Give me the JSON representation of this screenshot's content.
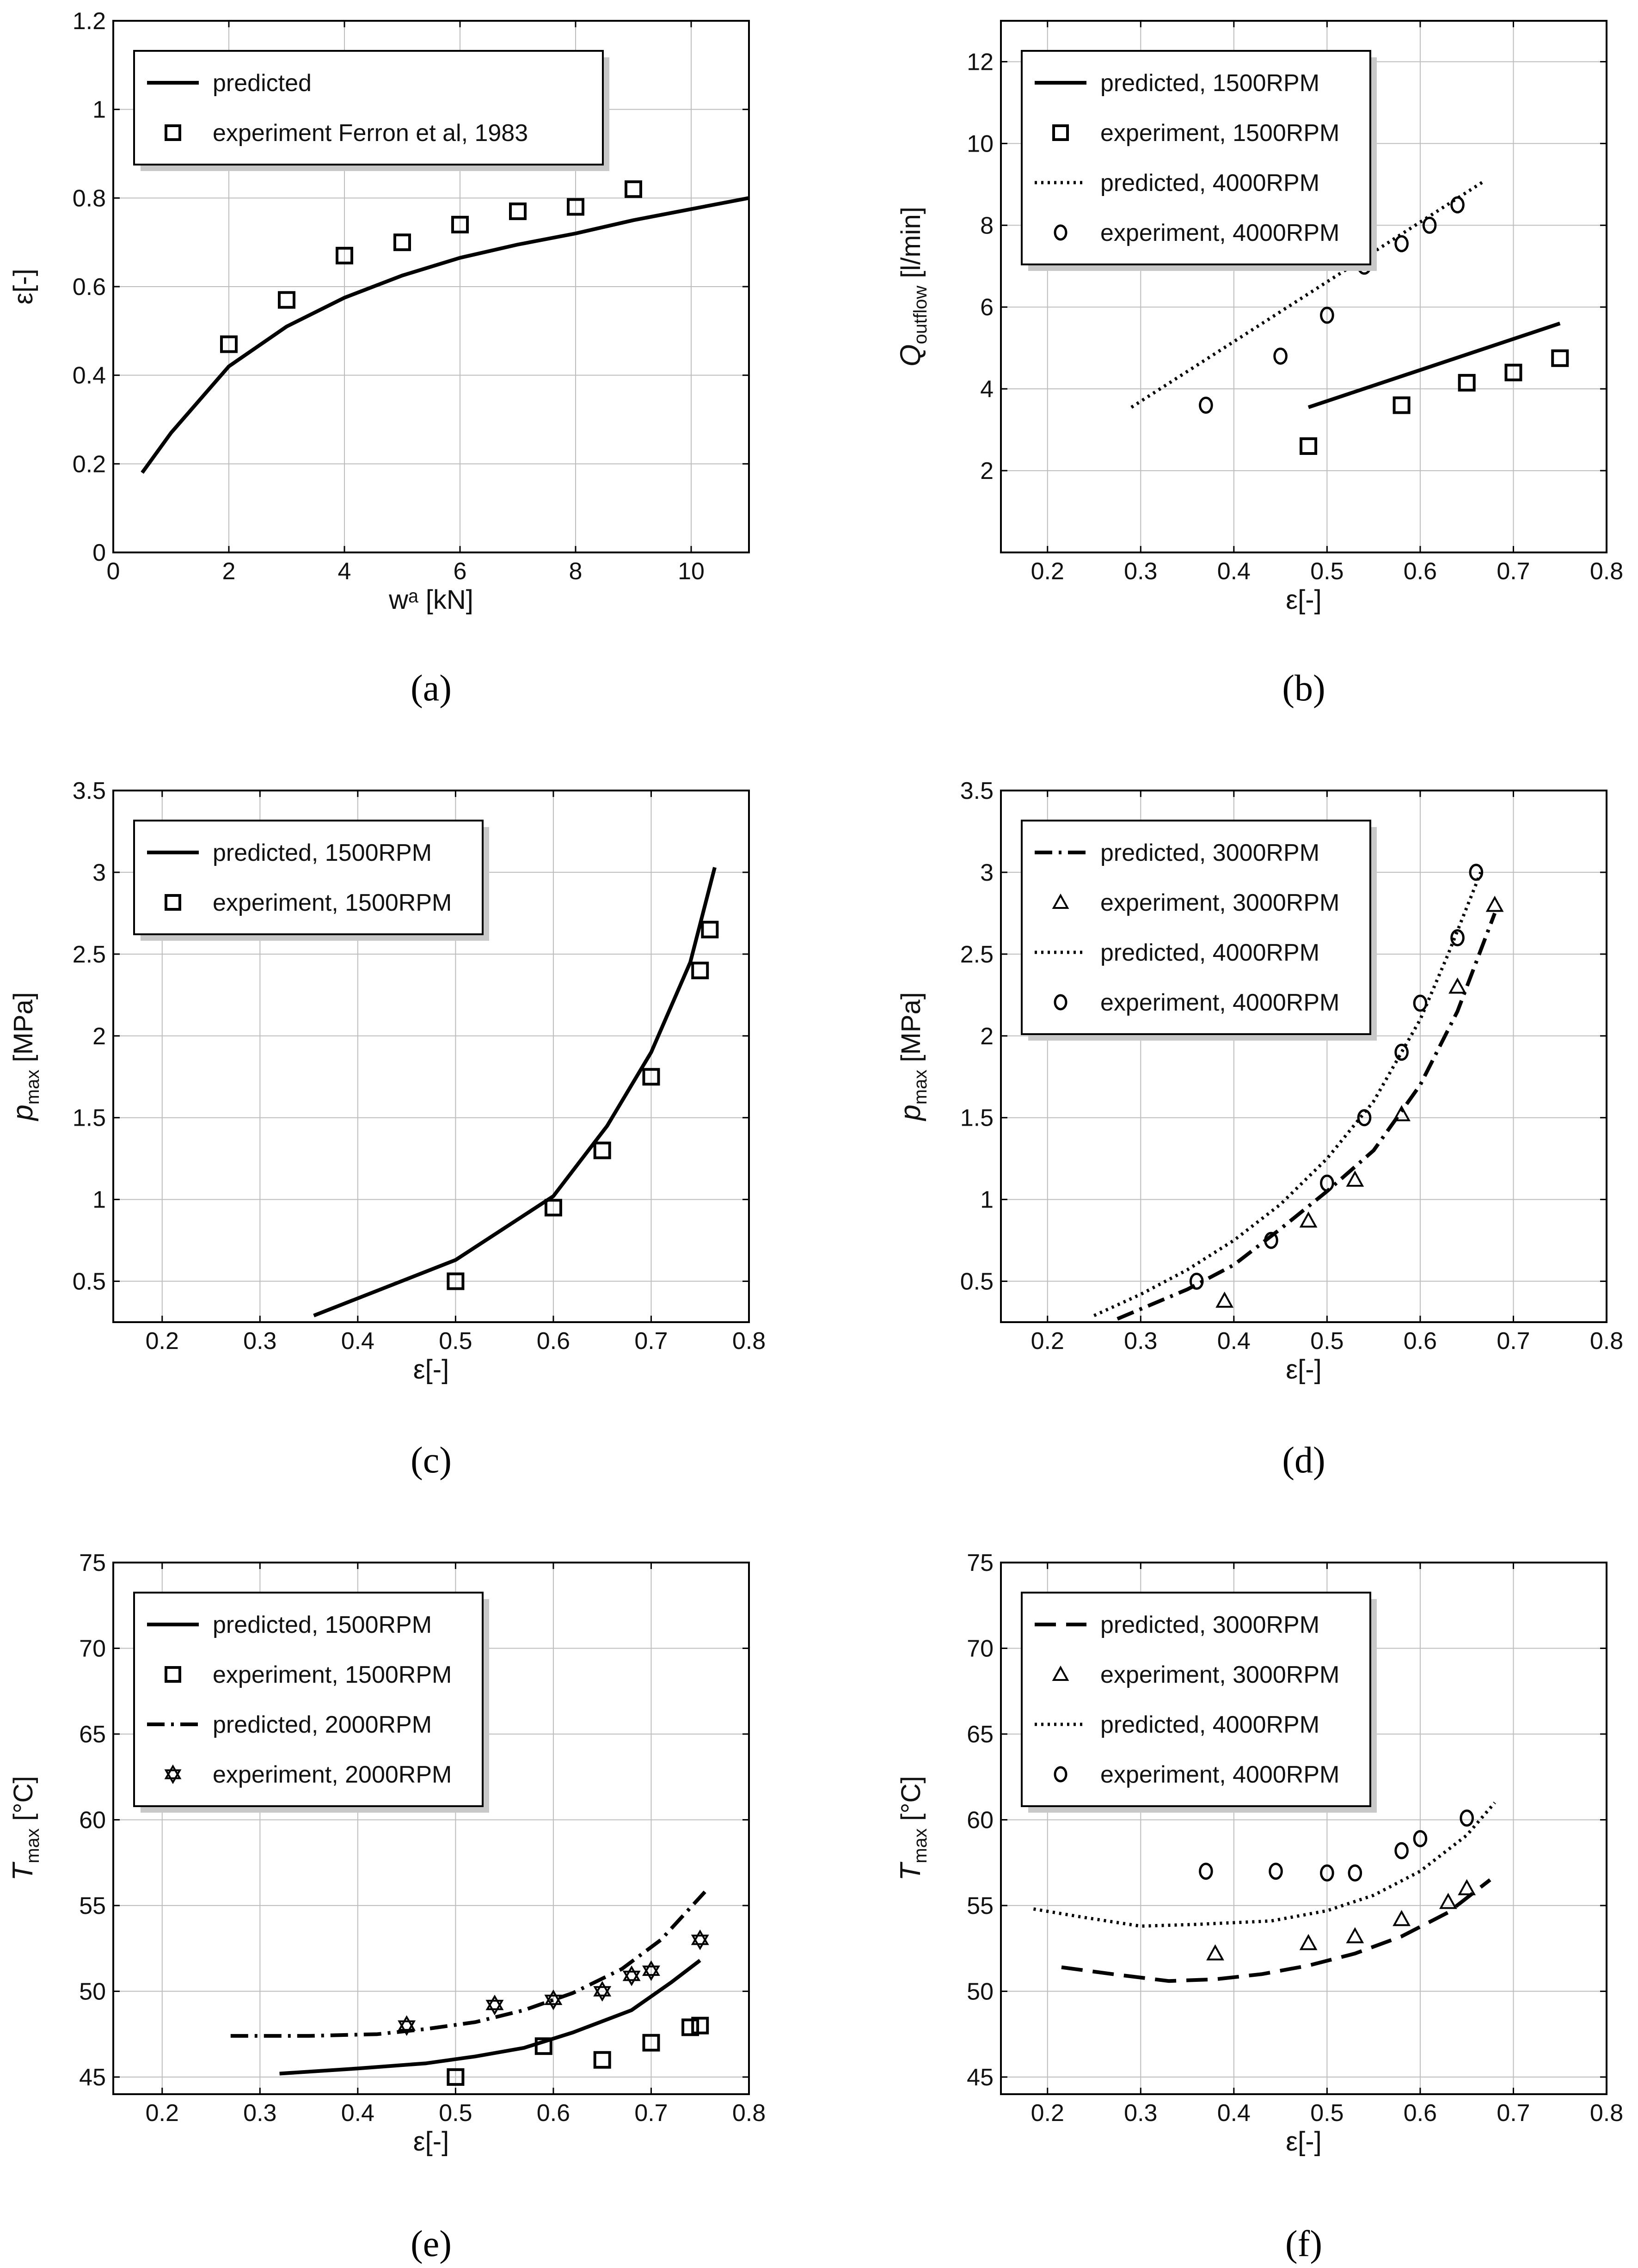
{
  "chart_data": [
    {
      "type": "line",
      "panel": "a",
      "panel_label": "(a)",
      "xlabel": "wᵃ [kN]",
      "ylabel": "ε[-]",
      "xlim": [
        0,
        11
      ],
      "ylim": [
        0,
        1.2
      ],
      "xticks": [
        0,
        2,
        4,
        6,
        8,
        10
      ],
      "yticks": [
        0,
        0.2,
        0.4,
        0.6,
        0.8,
        1,
        1.2
      ],
      "legend": "top-left",
      "series": [
        {
          "name": "predicted",
          "style": "solid",
          "x": [
            0.5,
            1,
            2,
            3,
            4,
            5,
            6,
            7,
            8,
            9,
            10,
            11
          ],
          "y": [
            0.18,
            0.27,
            0.42,
            0.51,
            0.575,
            0.625,
            0.665,
            0.695,
            0.72,
            0.75,
            0.775,
            0.8
          ]
        },
        {
          "name": "experiment Ferron et al, 1983",
          "marker": "square",
          "x": [
            2,
            3,
            4,
            5,
            6,
            7,
            8,
            9
          ],
          "y": [
            0.47,
            0.57,
            0.67,
            0.7,
            0.74,
            0.77,
            0.78,
            0.82
          ]
        }
      ]
    },
    {
      "type": "line",
      "panel": "b",
      "panel_label": "(b)",
      "xlabel": "ε[-]",
      "ylabel": "Q_outflow [l/min]",
      "xlim": [
        0.15,
        0.8
      ],
      "ylim": [
        0,
        13
      ],
      "xticks": [
        0.2,
        0.3,
        0.4,
        0.5,
        0.6,
        0.7,
        0.8
      ],
      "yticks": [
        2,
        4,
        6,
        8,
        10,
        12
      ],
      "legend": "top-left",
      "series": [
        {
          "name": "predicted, 1500RPM",
          "style": "solid",
          "x": [
            0.48,
            0.75
          ],
          "y": [
            3.55,
            5.6
          ]
        },
        {
          "name": "experiment, 1500RPM",
          "marker": "square",
          "x": [
            0.48,
            0.58,
            0.65,
            0.7,
            0.75
          ],
          "y": [
            2.6,
            3.6,
            4.15,
            4.4,
            4.75
          ]
        },
        {
          "name": "predicted, 4000RPM",
          "style": "dotted",
          "x": [
            0.29,
            0.67
          ],
          "y": [
            3.55,
            9.1
          ]
        },
        {
          "name": "experiment, 4000RPM",
          "marker": "circle",
          "x": [
            0.37,
            0.45,
            0.5,
            0.54,
            0.58,
            0.61,
            0.64
          ],
          "y": [
            3.6,
            4.8,
            5.8,
            7.0,
            7.55,
            8.0,
            8.5
          ]
        }
      ]
    },
    {
      "type": "line",
      "panel": "c",
      "panel_label": "(c)",
      "xlabel": "ε[-]",
      "ylabel": "p_max [MPa]",
      "xlim": [
        0.15,
        0.8
      ],
      "ylim": [
        0.25,
        3.5
      ],
      "xticks": [
        0.2,
        0.3,
        0.4,
        0.5,
        0.6,
        0.7,
        0.8
      ],
      "yticks": [
        0.5,
        1,
        1.5,
        2,
        2.5,
        3,
        3.5
      ],
      "legend": "top-left",
      "series": [
        {
          "name": "predicted, 1500RPM",
          "style": "solid",
          "x": [
            0.355,
            0.5,
            0.6,
            0.655,
            0.7,
            0.74,
            0.765
          ],
          "y": [
            0.29,
            0.63,
            1.02,
            1.45,
            1.9,
            2.45,
            3.03
          ]
        },
        {
          "name": "experiment, 1500RPM",
          "marker": "square",
          "x": [
            0.5,
            0.6,
            0.65,
            0.7,
            0.75,
            0.76
          ],
          "y": [
            0.5,
            0.95,
            1.3,
            1.75,
            2.4,
            2.65
          ]
        }
      ]
    },
    {
      "type": "line",
      "panel": "d",
      "panel_label": "(d)",
      "xlabel": "ε[-]",
      "ylabel": "p_max [MPa]",
      "xlim": [
        0.15,
        0.8
      ],
      "ylim": [
        0.25,
        3.5
      ],
      "xticks": [
        0.2,
        0.3,
        0.4,
        0.5,
        0.6,
        0.7,
        0.8
      ],
      "yticks": [
        0.5,
        1,
        1.5,
        2,
        2.5,
        3,
        3.5
      ],
      "legend": "top-left",
      "series": [
        {
          "name": "predicted, 3000RPM",
          "style": "dashdot",
          "x": [
            0.275,
            0.35,
            0.4,
            0.45,
            0.5,
            0.55,
            0.6,
            0.64,
            0.68
          ],
          "y": [
            0.27,
            0.45,
            0.6,
            0.82,
            1.05,
            1.3,
            1.7,
            2.15,
            2.75
          ]
        },
        {
          "name": "experiment, 3000RPM",
          "marker": "triangle",
          "x": [
            0.39,
            0.48,
            0.53,
            0.58,
            0.64,
            0.68
          ],
          "y": [
            0.38,
            0.87,
            1.12,
            1.52,
            2.3,
            2.8
          ]
        },
        {
          "name": "predicted, 4000RPM",
          "style": "dotted",
          "x": [
            0.25,
            0.3,
            0.35,
            0.4,
            0.45,
            0.5,
            0.55,
            0.6,
            0.63,
            0.665
          ],
          "y": [
            0.29,
            0.42,
            0.57,
            0.75,
            0.97,
            1.25,
            1.6,
            2.1,
            2.5,
            3.0
          ]
        },
        {
          "name": "experiment, 4000RPM",
          "marker": "circle",
          "x": [
            0.36,
            0.44,
            0.5,
            0.54,
            0.58,
            0.6,
            0.64,
            0.66
          ],
          "y": [
            0.5,
            0.75,
            1.1,
            1.5,
            1.9,
            2.2,
            2.6,
            3.0
          ]
        }
      ]
    },
    {
      "type": "line",
      "panel": "e",
      "panel_label": "(e)",
      "xlabel": "ε[-]",
      "ylabel": "T_max [°C]",
      "xlim": [
        0.15,
        0.8
      ],
      "ylim": [
        44,
        75
      ],
      "xticks": [
        0.2,
        0.3,
        0.4,
        0.5,
        0.6,
        0.7,
        0.8
      ],
      "yticks": [
        45,
        50,
        55,
        60,
        65,
        70,
        75
      ],
      "legend": "top-left",
      "series": [
        {
          "name": "predicted, 1500RPM",
          "style": "solid",
          "x": [
            0.32,
            0.4,
            0.47,
            0.52,
            0.57,
            0.62,
            0.68,
            0.72,
            0.75
          ],
          "y": [
            45.2,
            45.5,
            45.8,
            46.2,
            46.7,
            47.6,
            48.9,
            50.5,
            51.8
          ]
        },
        {
          "name": "experiment, 1500RPM",
          "marker": "square",
          "x": [
            0.5,
            0.59,
            0.65,
            0.7,
            0.74,
            0.75
          ],
          "y": [
            45.0,
            46.8,
            46.0,
            47.0,
            47.9,
            48.0
          ]
        },
        {
          "name": "predicted, 2000RPM",
          "style": "dashdot",
          "x": [
            0.27,
            0.35,
            0.42,
            0.47,
            0.52,
            0.57,
            0.62,
            0.67,
            0.71,
            0.755
          ],
          "y": [
            47.4,
            47.4,
            47.5,
            47.8,
            48.2,
            48.9,
            49.9,
            51.3,
            53.0,
            55.8
          ]
        },
        {
          "name": "experiment, 2000RPM",
          "marker": "star",
          "x": [
            0.45,
            0.54,
            0.6,
            0.65,
            0.68,
            0.7,
            0.75
          ],
          "y": [
            48.0,
            49.2,
            49.5,
            50.0,
            50.9,
            51.2,
            53.0
          ]
        }
      ]
    },
    {
      "type": "line",
      "panel": "f",
      "panel_label": "(f)",
      "xlabel": "ε[-]",
      "ylabel": "T_max [°C]",
      "xlim": [
        0.15,
        0.8
      ],
      "ylim": [
        44,
        75
      ],
      "xticks": [
        0.2,
        0.3,
        0.4,
        0.5,
        0.6,
        0.7,
        0.8
      ],
      "yticks": [
        45,
        50,
        55,
        60,
        65,
        70,
        75
      ],
      "legend": "top-left",
      "series": [
        {
          "name": "predicted, 3000RPM",
          "style": "dashed",
          "x": [
            0.215,
            0.27,
            0.33,
            0.38,
            0.43,
            0.48,
            0.53,
            0.58,
            0.63,
            0.675
          ],
          "y": [
            51.4,
            51.0,
            50.6,
            50.7,
            51.0,
            51.5,
            52.2,
            53.2,
            54.6,
            56.5
          ]
        },
        {
          "name": "experiment, 3000RPM",
          "marker": "triangle",
          "x": [
            0.38,
            0.48,
            0.53,
            0.58,
            0.63,
            0.65
          ],
          "y": [
            52.2,
            52.8,
            53.2,
            54.2,
            55.2,
            56.0
          ]
        },
        {
          "name": "predicted, 4000RPM",
          "style": "dotted",
          "x": [
            0.185,
            0.24,
            0.3,
            0.36,
            0.44,
            0.5,
            0.55,
            0.6,
            0.65,
            0.68
          ],
          "y": [
            54.8,
            54.3,
            53.8,
            53.9,
            54.1,
            54.7,
            55.6,
            57.0,
            59.1,
            61.0
          ]
        },
        {
          "name": "experiment, 4000RPM",
          "marker": "circle",
          "x": [
            0.37,
            0.445,
            0.5,
            0.53,
            0.58,
            0.6,
            0.65
          ],
          "y": [
            57.0,
            57.0,
            56.9,
            56.9,
            58.2,
            58.9,
            60.1
          ]
        }
      ]
    }
  ]
}
